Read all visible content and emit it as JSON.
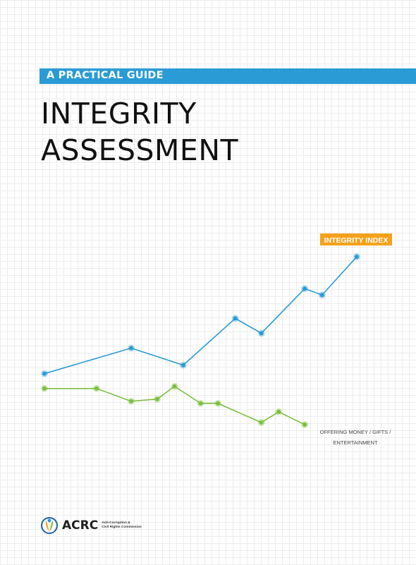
{
  "header": {
    "subtitle": "A PRACTICAL GUIDE",
    "title_line1": "INTEGRITY",
    "title_line2": "ASSESSMENT"
  },
  "chart_data": {
    "type": "line",
    "annotations": [
      "INTEGRITY INDEX",
      "OFFERING MONEY / GIFTS /",
      "ENTERTAINMENT"
    ],
    "series": [
      {
        "name": "INTEGRITY INDEX",
        "color": "#2a9bd4",
        "values": [
          32,
          44,
          36,
          58,
          51,
          72,
          69,
          87
        ],
        "x": [
          0,
          5,
          8,
          11,
          12.5,
          15,
          16,
          18
        ]
      },
      {
        "name": "OFFERING MONEY / GIFTS / ENTERTAINMENT",
        "color": "#7cbf3f",
        "values": [
          25,
          25,
          19,
          20,
          26,
          18,
          18,
          9,
          14,
          8
        ],
        "x": [
          0,
          3,
          5,
          6.5,
          7.5,
          9,
          10,
          12.5,
          13.5,
          15
        ]
      }
    ],
    "grid": true,
    "legend": "none"
  },
  "label_colors": {
    "index_badge": "#f5a21b"
  },
  "footer": {
    "logo_text": "ACRC",
    "logo_sub_line1": "Anti-Corruption &",
    "logo_sub_line2": "Civil Rights Commission"
  }
}
